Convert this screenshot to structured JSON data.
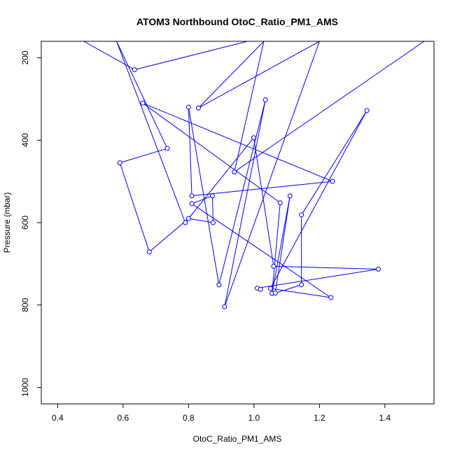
{
  "chart_data": {
    "type": "line",
    "title": "ATOM3 Northbound OtoC_Ratio_PM1_AMS",
    "xlabel": "OtoC_Ratio_PM1_AMS",
    "ylabel": "Pressure (mbar)",
    "xlim": [
      0.35,
      1.55
    ],
    "ylim": [
      1040,
      160
    ],
    "y_reversed": true,
    "x_ticks": [
      "0.4",
      "0.6",
      "0.8",
      "1.0",
      "1.2",
      "1.4"
    ],
    "y_ticks": [
      "200",
      "400",
      "600",
      "800",
      "1000"
    ],
    "grid": false,
    "legend": "none",
    "series_color": "#0000ff",
    "marker": "open-circle",
    "points": [
      {
        "x": 0.48,
        "y": 160
      },
      {
        "x": 0.635,
        "y": 229
      },
      {
        "x": 0.98,
        "y": 160
      },
      {
        "x": 1.52,
        "y": 160
      },
      {
        "x": 0.94,
        "y": 477
      },
      {
        "x": 1.03,
        "y": 160
      },
      {
        "x": 0.83,
        "y": 322
      },
      {
        "x": 1.2,
        "y": 160
      },
      {
        "x": 0.91,
        "y": 804
      },
      {
        "x": 1.035,
        "y": 302
      },
      {
        "x": 0.893,
        "y": 751
      },
      {
        "x": 0.8,
        "y": 320
      },
      {
        "x": 0.81,
        "y": 535
      },
      {
        "x": 1.24,
        "y": 500
      },
      {
        "x": 0.66,
        "y": 310
      },
      {
        "x": 1.08,
        "y": 552
      },
      {
        "x": 1.055,
        "y": 772
      },
      {
        "x": 1.11,
        "y": 535
      },
      {
        "x": 1.065,
        "y": 771
      },
      {
        "x": 1.145,
        "y": 751
      },
      {
        "x": 1.145,
        "y": 581
      },
      {
        "x": 1.345,
        "y": 328
      },
      {
        "x": 1.05,
        "y": 760
      },
      {
        "x": 1.235,
        "y": 782
      },
      {
        "x": 0.81,
        "y": 554
      },
      {
        "x": 0.873,
        "y": 535
      },
      {
        "x": 0.875,
        "y": 600
      },
      {
        "x": 0.8,
        "y": 590
      },
      {
        "x": 0.68,
        "y": 671
      },
      {
        "x": 0.59,
        "y": 455
      },
      {
        "x": 0.735,
        "y": 420
      },
      {
        "x": 0.58,
        "y": 160
      },
      {
        "x": 0.79,
        "y": 600
      },
      {
        "x": 0.999,
        "y": 394
      },
      {
        "x": 1.06,
        "y": 706
      },
      {
        "x": 1.38,
        "y": 713
      },
      {
        "x": 1.01,
        "y": 759
      },
      {
        "x": 1.02,
        "y": 762
      }
    ]
  }
}
